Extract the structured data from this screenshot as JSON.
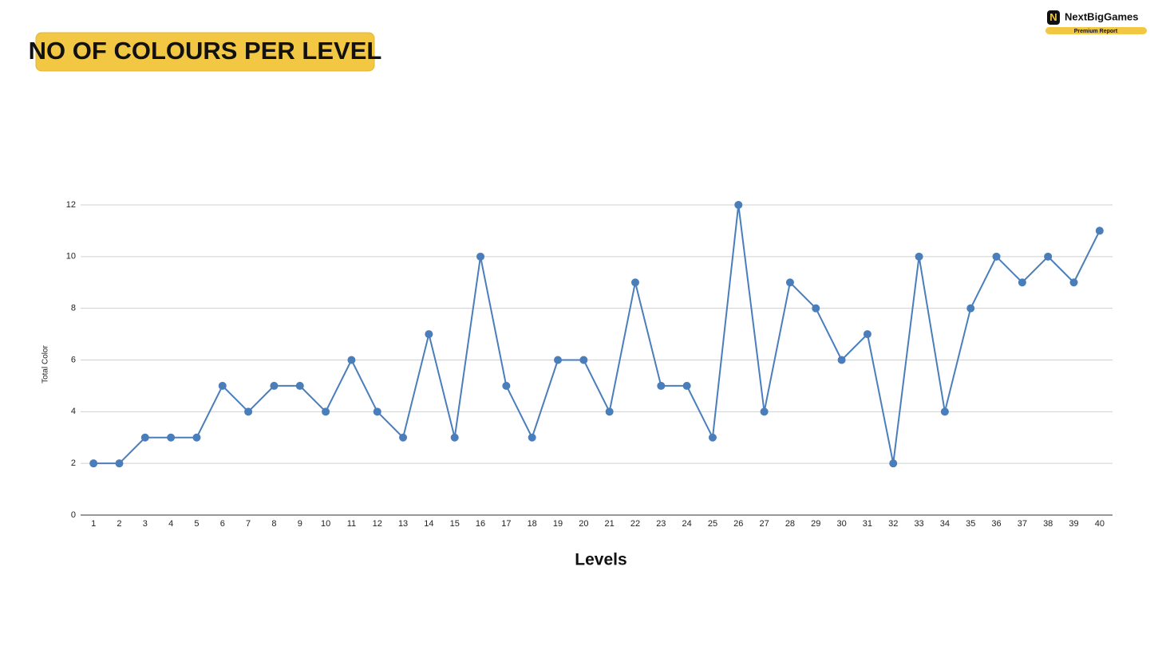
{
  "header": {
    "title": "NO OF COLOURS PER LEVEL",
    "brand": "NextBigGames",
    "badge": "Premium Report"
  },
  "chart_data": {
    "type": "line",
    "x_label": "Levels",
    "y_label": "Total Color",
    "categories": [
      "1",
      "2",
      "3",
      "4",
      "5",
      "6",
      "7",
      "8",
      "9",
      "10",
      "11",
      "12",
      "13",
      "14",
      "15",
      "16",
      "17",
      "18",
      "19",
      "20",
      "21",
      "22",
      "23",
      "24",
      "25",
      "26",
      "27",
      "28",
      "29",
      "30",
      "31",
      "32",
      "33",
      "34",
      "35",
      "36",
      "37",
      "38",
      "39",
      "40"
    ],
    "series": [
      {
        "name": "Total Color",
        "color": "#4a7ebb",
        "values": [
          2,
          2,
          3,
          3,
          3,
          5,
          4,
          5,
          5,
          4,
          6,
          4,
          3,
          7,
          3,
          10,
          5,
          3,
          6,
          6,
          4,
          9,
          5,
          5,
          3,
          12,
          4,
          9,
          8,
          6,
          7,
          2,
          10,
          4,
          8,
          10,
          9,
          10,
          9,
          11
        ]
      }
    ],
    "ylim": [
      0,
      12
    ],
    "yticks": [
      0,
      2,
      4,
      6,
      8,
      10,
      12
    ],
    "grid": true
  }
}
